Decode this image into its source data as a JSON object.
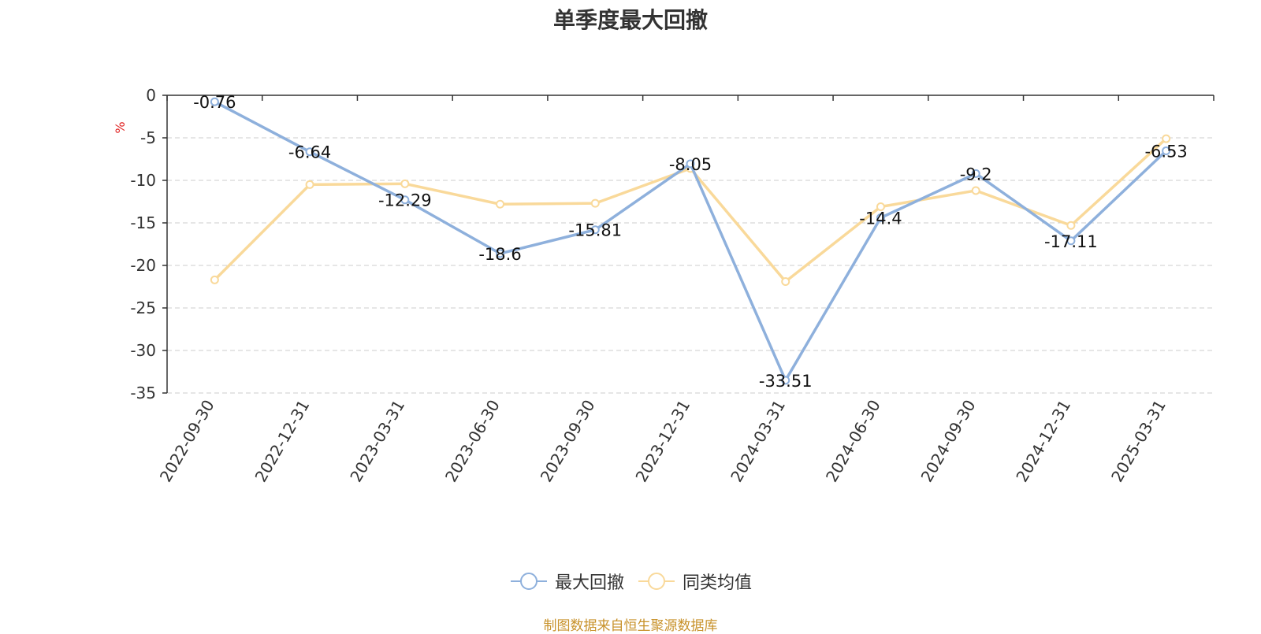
{
  "title": "单季度最大回撤",
  "source_note": "制图数据来自恒生聚源数据库",
  "chart_data": {
    "type": "line",
    "title": "单季度最大回撤",
    "ylabel": "%",
    "ylim": [
      -35,
      0
    ],
    "yticks": [
      0,
      -5,
      -10,
      -15,
      -20,
      -25,
      -30,
      -35
    ],
    "grid": true,
    "legend_position": "bottom-center",
    "categories": [
      "2022-09-30",
      "2022-12-31",
      "2023-03-31",
      "2023-06-30",
      "2023-09-30",
      "2023-12-31",
      "2024-03-31",
      "2024-06-30",
      "2024-09-30",
      "2024-12-31",
      "2025-03-31"
    ],
    "series": [
      {
        "name": "最大回撤",
        "color": "#8eb0dc",
        "values": [
          -0.76,
          -6.64,
          -12.29,
          -18.6,
          -15.81,
          -8.05,
          -33.51,
          -14.4,
          -9.2,
          -17.11,
          -6.53
        ],
        "labels": [
          "-0.76",
          "-6.64",
          "-12.29",
          "-18.6",
          "-15.81",
          "-8.05",
          "-33.51",
          "-14.4",
          "-9.2",
          "-17.11",
          "-6.53"
        ]
      },
      {
        "name": "同类均值",
        "color": "#f9d99a",
        "values": [
          -21.7,
          -10.5,
          -10.4,
          -12.8,
          -12.7,
          -8.6,
          -21.9,
          -13.1,
          -11.2,
          -15.3,
          -5.1
        ]
      }
    ]
  }
}
